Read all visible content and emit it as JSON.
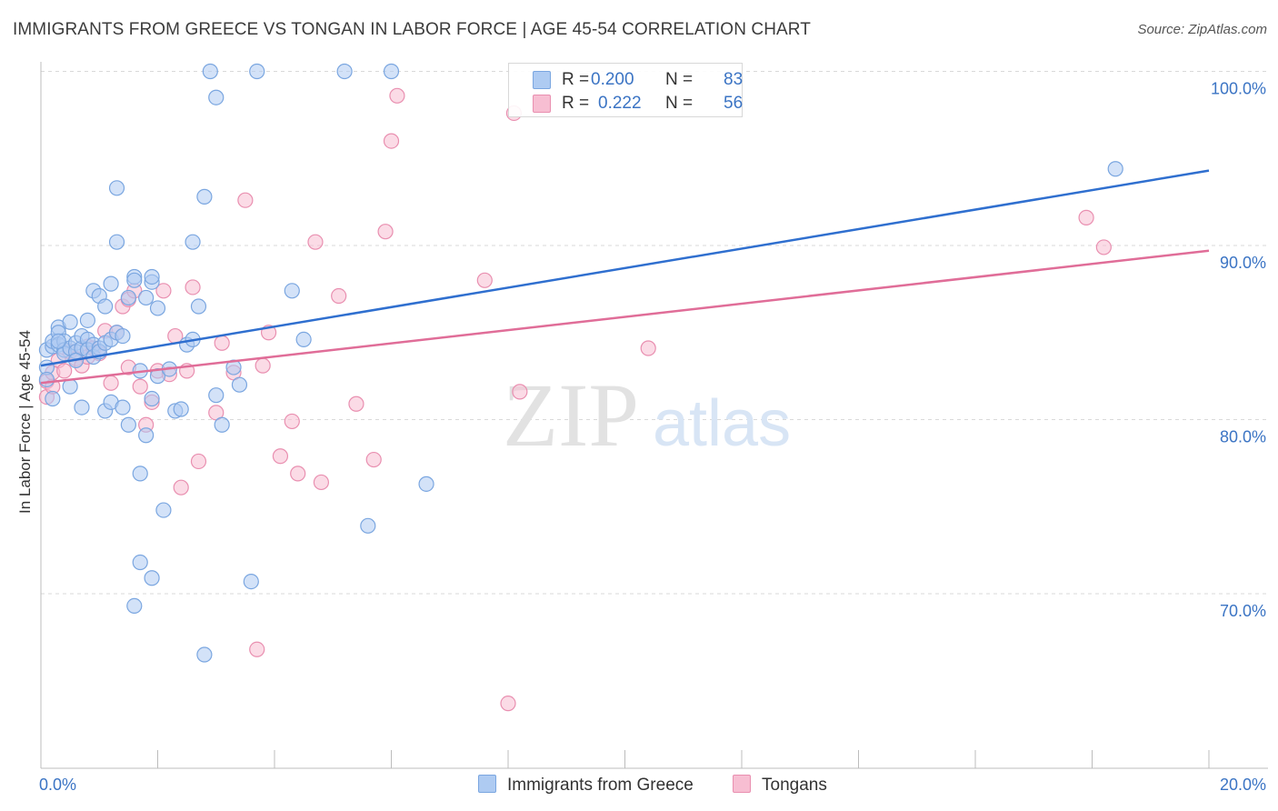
{
  "title": "IMMIGRANTS FROM GREECE VS TONGAN IN LABOR FORCE | AGE 45-54 CORRELATION CHART",
  "source": "Source: ZipAtlas.com",
  "watermark": {
    "zip": "ZIP",
    "atlas": "atlas"
  },
  "legend": [
    {
      "r_label": "R =",
      "r_value": "0.200",
      "n_label": "N =",
      "n_value": "83"
    },
    {
      "r_label": "R =",
      "r_value": "0.222",
      "n_label": "N =",
      "n_value": "56"
    }
  ],
  "bottom_legend": [
    "Immigrants from Greece",
    "Tongans"
  ],
  "colors": {
    "blue_fill": "#aecbf2",
    "blue_stroke": "#7aa6e0",
    "blue_line": "#2f6fcf",
    "pink_fill": "#f7bed2",
    "pink_stroke": "#e98fb0",
    "pink_line": "#e06d98",
    "axis_text": "#3b74c4"
  },
  "chart_data": {
    "type": "scatter",
    "title": "IMMIGRANTS FROM GREECE VS TONGAN IN LABOR FORCE | AGE 45-54 CORRELATION CHART",
    "xlabel": "",
    "ylabel": "In Labor Force | Age 45-54",
    "xlim": [
      0,
      20
    ],
    "ylim": [
      60,
      100
    ],
    "x_tick_labels": [
      "0.0%",
      "20.0%"
    ],
    "y_ticks": [
      70,
      80,
      90,
      100
    ],
    "y_tick_labels": [
      "70.0%",
      "80.0%",
      "90.0%",
      "100.0%"
    ],
    "series": [
      {
        "name": "Immigrants from Greece",
        "r": 0.2,
        "n": 83,
        "trend": {
          "x": [
            0,
            20
          ],
          "y": [
            83.1,
            94.3
          ]
        },
        "points": [
          [
            0.1,
            84.0
          ],
          [
            0.1,
            83.0
          ],
          [
            0.1,
            82.3
          ],
          [
            0.2,
            84.2
          ],
          [
            0.2,
            84.5
          ],
          [
            0.2,
            81.2
          ],
          [
            0.3,
            85.3
          ],
          [
            0.3,
            85.0
          ],
          [
            0.3,
            84.3
          ],
          [
            0.4,
            84.5
          ],
          [
            0.4,
            84.0
          ],
          [
            0.4,
            83.8
          ],
          [
            0.5,
            85.6
          ],
          [
            0.5,
            84.1
          ],
          [
            0.5,
            81.9
          ],
          [
            0.6,
            84.4
          ],
          [
            0.6,
            83.9
          ],
          [
            0.7,
            84.1
          ],
          [
            0.7,
            80.7
          ],
          [
            0.7,
            84.8
          ],
          [
            0.8,
            84.6
          ],
          [
            0.8,
            85.7
          ],
          [
            0.8,
            84.0
          ],
          [
            0.9,
            87.4
          ],
          [
            0.9,
            84.3
          ],
          [
            0.9,
            83.6
          ],
          [
            1.0,
            87.1
          ],
          [
            1.0,
            84.1
          ],
          [
            1.0,
            83.9
          ],
          [
            1.1,
            86.5
          ],
          [
            1.1,
            84.4
          ],
          [
            1.1,
            80.5
          ],
          [
            1.2,
            87.8
          ],
          [
            1.2,
            84.6
          ],
          [
            1.2,
            81.0
          ],
          [
            1.3,
            90.2
          ],
          [
            1.3,
            85.0
          ],
          [
            1.3,
            93.3
          ],
          [
            1.4,
            80.7
          ],
          [
            1.5,
            79.7
          ],
          [
            1.5,
            87.0
          ],
          [
            1.6,
            88.2
          ],
          [
            1.6,
            88.0
          ],
          [
            1.7,
            82.8
          ],
          [
            1.7,
            76.9
          ],
          [
            1.7,
            71.8
          ],
          [
            1.8,
            79.1
          ],
          [
            1.8,
            87.0
          ],
          [
            1.9,
            70.9
          ],
          [
            1.9,
            81.2
          ],
          [
            1.9,
            87.9
          ],
          [
            2.0,
            82.5
          ],
          [
            2.0,
            86.4
          ],
          [
            2.1,
            74.8
          ],
          [
            2.2,
            82.9
          ],
          [
            2.3,
            80.5
          ],
          [
            2.4,
            80.6
          ],
          [
            2.5,
            84.3
          ],
          [
            2.6,
            90.2
          ],
          [
            2.6,
            84.6
          ],
          [
            2.7,
            86.5
          ],
          [
            2.8,
            92.8
          ],
          [
            2.9,
            100.0
          ],
          [
            3.0,
            98.5
          ],
          [
            3.0,
            81.4
          ],
          [
            3.1,
            79.7
          ],
          [
            3.3,
            83.0
          ],
          [
            3.4,
            82.0
          ],
          [
            3.6,
            70.7
          ],
          [
            3.7,
            100.0
          ],
          [
            1.6,
            69.3
          ],
          [
            2.8,
            66.5
          ],
          [
            4.3,
            87.4
          ],
          [
            4.5,
            84.6
          ],
          [
            5.2,
            100.0
          ],
          [
            5.6,
            73.9
          ],
          [
            6.0,
            100.0
          ],
          [
            6.6,
            76.3
          ],
          [
            18.4,
            94.4
          ],
          [
            0.6,
            83.4
          ],
          [
            1.4,
            84.8
          ],
          [
            0.3,
            84.5
          ],
          [
            1.9,
            88.2
          ]
        ]
      },
      {
        "name": "Tongans",
        "r": 0.222,
        "n": 56,
        "trend": {
          "x": [
            0,
            20
          ],
          "y": [
            82.1,
            89.7
          ]
        },
        "points": [
          [
            0.1,
            82.2
          ],
          [
            0.1,
            81.3
          ],
          [
            0.2,
            82.7
          ],
          [
            0.2,
            81.9
          ],
          [
            0.3,
            83.4
          ],
          [
            0.4,
            82.8
          ],
          [
            0.5,
            83.9
          ],
          [
            0.6,
            83.5
          ],
          [
            0.7,
            83.1
          ],
          [
            0.8,
            84.2
          ],
          [
            0.8,
            83.6
          ],
          [
            0.9,
            84.1
          ],
          [
            1.0,
            83.8
          ],
          [
            1.1,
            85.1
          ],
          [
            1.2,
            82.1
          ],
          [
            1.3,
            85.0
          ],
          [
            1.4,
            86.5
          ],
          [
            1.5,
            83.0
          ],
          [
            1.5,
            86.9
          ],
          [
            1.6,
            87.4
          ],
          [
            1.7,
            81.9
          ],
          [
            1.8,
            79.7
          ],
          [
            1.9,
            81.0
          ],
          [
            2.0,
            82.8
          ],
          [
            2.1,
            87.4
          ],
          [
            2.2,
            82.6
          ],
          [
            2.3,
            84.8
          ],
          [
            2.4,
            76.1
          ],
          [
            2.5,
            82.8
          ],
          [
            2.6,
            87.6
          ],
          [
            2.7,
            77.6
          ],
          [
            3.0,
            80.4
          ],
          [
            3.1,
            84.4
          ],
          [
            3.3,
            82.7
          ],
          [
            3.5,
            92.6
          ],
          [
            3.7,
            66.8
          ],
          [
            3.8,
            83.1
          ],
          [
            3.9,
            85.0
          ],
          [
            4.1,
            77.9
          ],
          [
            4.3,
            79.9
          ],
          [
            4.4,
            76.9
          ],
          [
            4.7,
            90.2
          ],
          [
            4.8,
            76.4
          ],
          [
            5.1,
            87.1
          ],
          [
            5.4,
            80.9
          ],
          [
            5.7,
            77.7
          ],
          [
            5.9,
            90.8
          ],
          [
            6.0,
            96.0
          ],
          [
            6.1,
            98.6
          ],
          [
            7.6,
            88.0
          ],
          [
            8.0,
            63.7
          ],
          [
            8.1,
            97.6
          ],
          [
            8.2,
            81.6
          ],
          [
            10.4,
            84.1
          ],
          [
            17.9,
            91.6
          ],
          [
            18.2,
            89.9
          ]
        ]
      }
    ]
  }
}
